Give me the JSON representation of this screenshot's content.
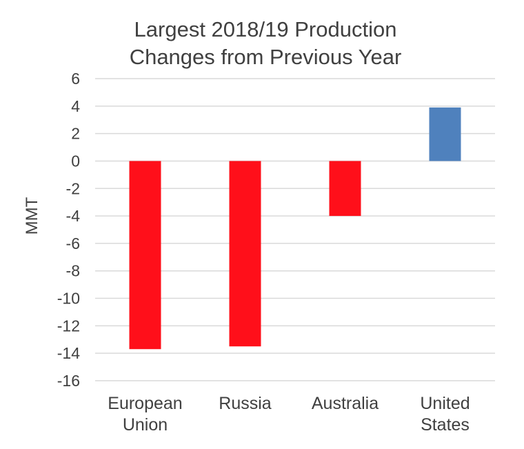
{
  "chart_data": {
    "type": "bar",
    "title_lines": [
      "Largest 2018/19 Production",
      "Changes from Previous Year"
    ],
    "ylabel": "MMT",
    "xlabel": "",
    "categories": [
      [
        "European",
        "Union"
      ],
      [
        "Russia"
      ],
      [
        "Australia"
      ],
      [
        "United",
        "States"
      ]
    ],
    "values": [
      -13.7,
      -13.5,
      -4.0,
      3.9
    ],
    "bar_colors": [
      "#ff0f1a",
      "#ff0f1a",
      "#ff0f1a",
      "#4f81bd"
    ],
    "ylim": [
      -16,
      6
    ],
    "yticks": [
      6,
      4,
      2,
      0,
      -2,
      -4,
      -6,
      -8,
      -10,
      -12,
      -14,
      -16
    ],
    "grid": true,
    "legend": "none"
  }
}
